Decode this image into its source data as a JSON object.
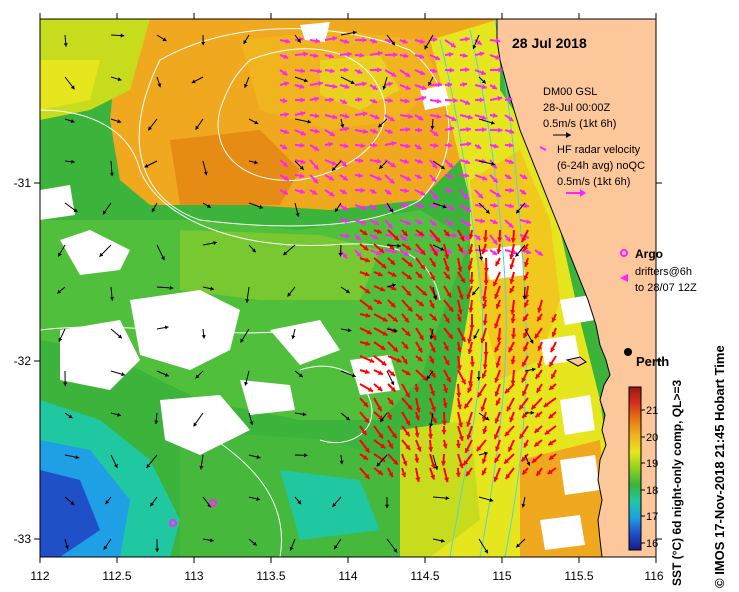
{
  "title": "28 Jul 2018",
  "legend": {
    "model": {
      "name": "DM00 GSL",
      "time": "28-Jul 00:00Z",
      "scale": "0.5m/s (1kt 6h)"
    },
    "radar": {
      "name": "HF radar velocity",
      "detail": "(6-24h avg) noQC",
      "scale": "0.5m/s (1kt 6h)"
    },
    "argo": "Argo",
    "drifters": {
      "line1": "drifters@6h",
      "line2": "to 28/07 12Z"
    }
  },
  "city": "Perth",
  "colorbar": {
    "label": "SST (°C) 6d night-only comp, QL>=3",
    "ticks": [
      "16",
      "17",
      "18",
      "19",
      "20",
      "21"
    ],
    "min": 15.6,
    "max": 21.7,
    "colors": [
      "#1a1a8c",
      "#1f50c8",
      "#1fa0e6",
      "#1fc8a0",
      "#3cb43c",
      "#8cd21e",
      "#e6e61e",
      "#f0b41e",
      "#e67814",
      "#d2321e",
      "#a01414"
    ]
  },
  "axes": {
    "x_ticks": [
      "112",
      "112.5",
      "113",
      "113.5",
      "114",
      "114.5",
      "115",
      "115.5",
      "116"
    ],
    "y_ticks": [
      "-31",
      "-32",
      "-33"
    ],
    "lon_range": [
      112,
      116
    ],
    "lat_range": [
      -33.1,
      -30.1
    ]
  },
  "credit": "© IMOS 17-Nov-2018 21:45 Hobart Time",
  "colors": {
    "land": "#fcc79b",
    "radar_arrow": "#ff0000",
    "drifter": "#ff22ff",
    "model_arrow": "#000000",
    "contour": "#ffffff"
  }
}
